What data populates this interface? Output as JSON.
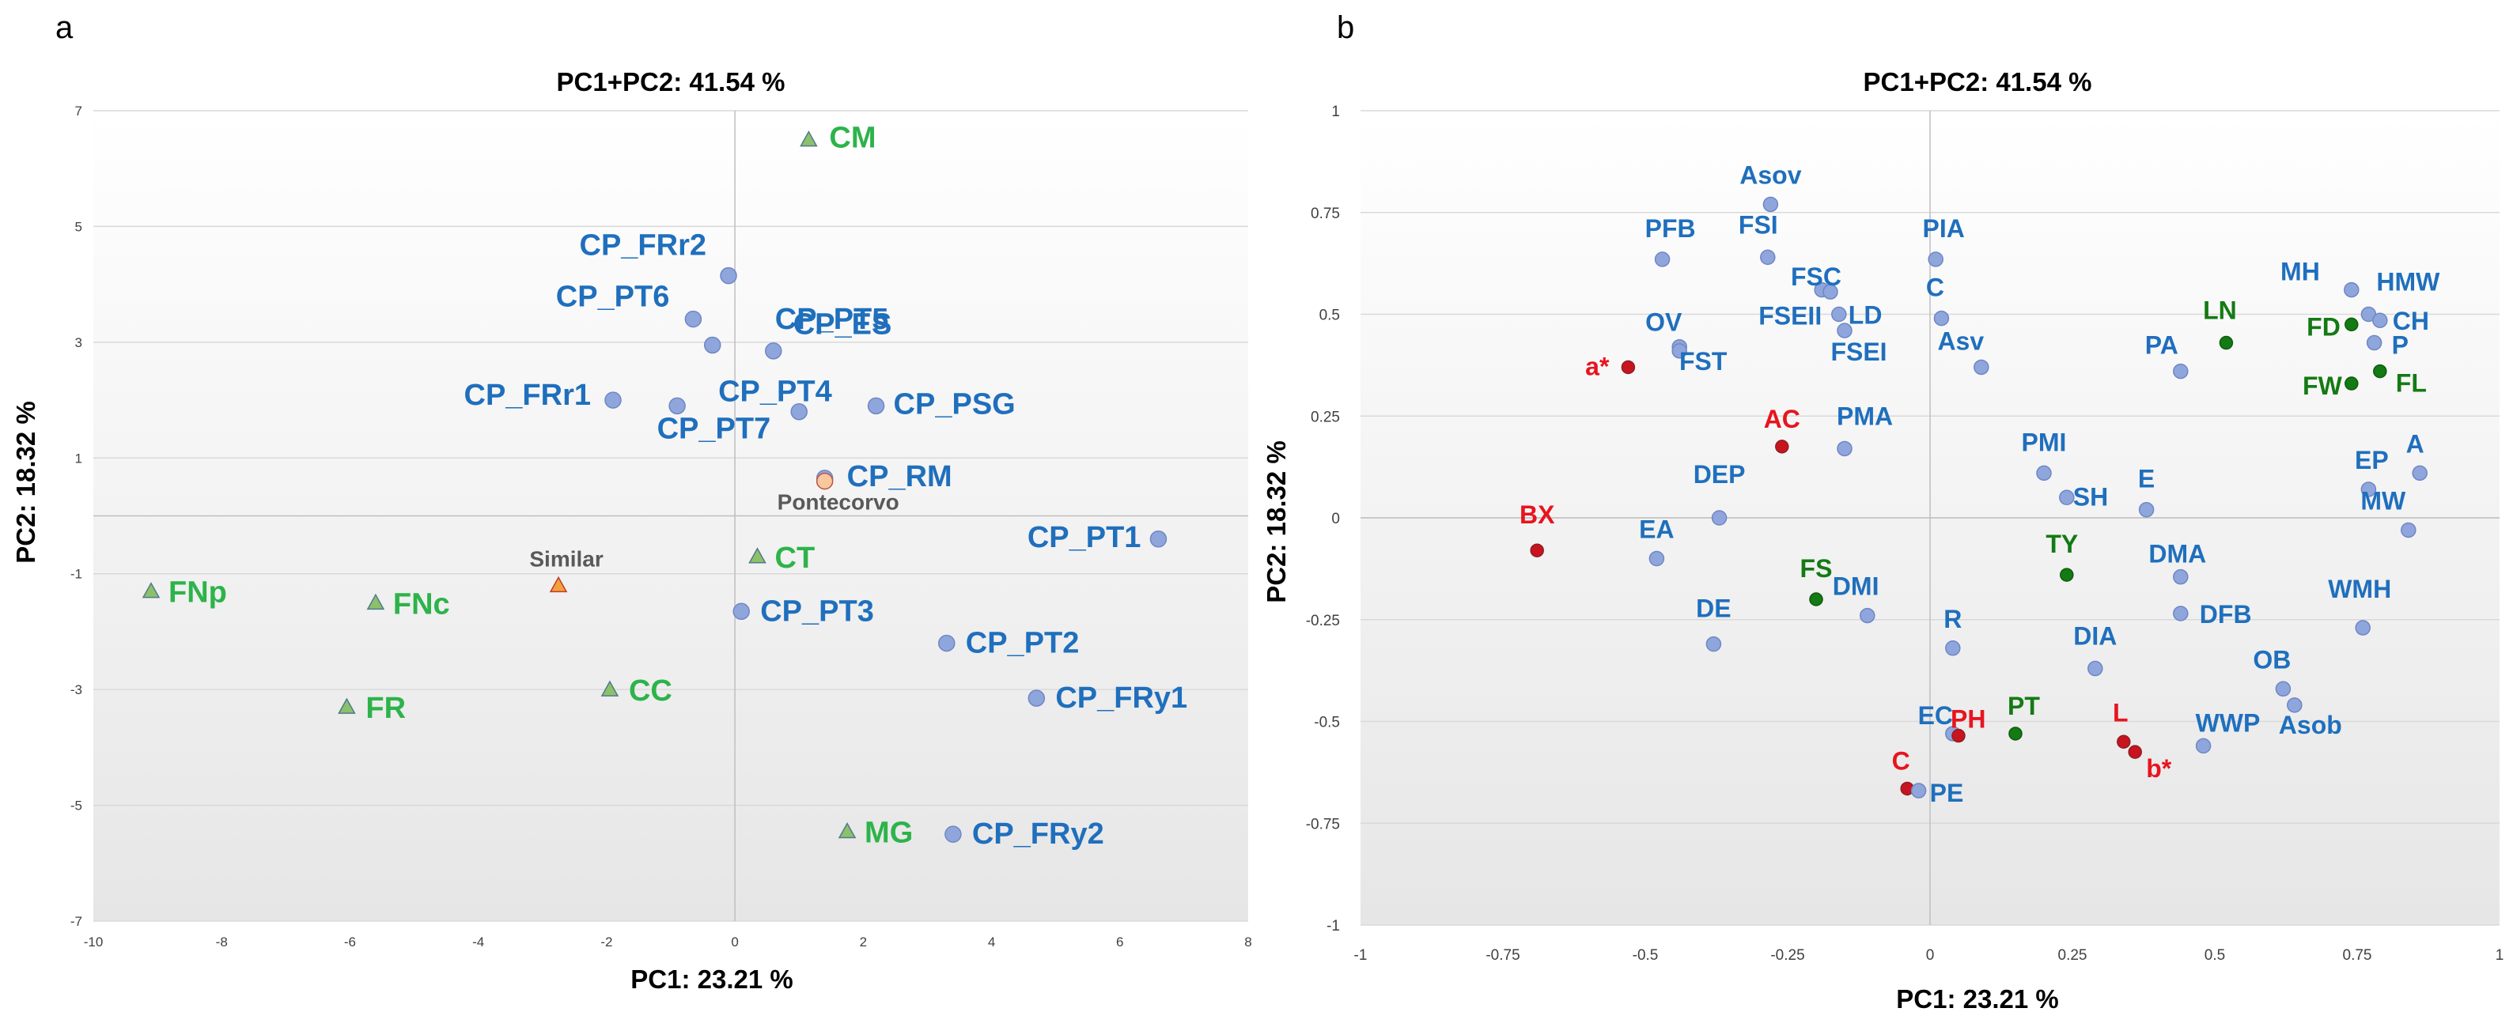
{
  "panels": {
    "a": "a",
    "b": "b"
  },
  "chart_data": [
    {
      "id": "a",
      "type": "scatter",
      "title": "PC1+PC2: 41.54 %",
      "xlabel": "PC1: 23.21 %",
      "ylabel": "PC2: 18.32 %",
      "xlim": [
        -10,
        8
      ],
      "ylim": [
        -7,
        7
      ],
      "xticks": [
        -10,
        -8,
        -6,
        -4,
        -2,
        0,
        2,
        4,
        6,
        8
      ],
      "yticks": [
        -7,
        -5,
        -3,
        -1,
        1,
        3,
        5,
        7
      ],
      "colors": {
        "blue": "#1f6fbd",
        "green": "#2db34a",
        "gray": "#595959",
        "marker_blue": "#8fa6dc",
        "marker_green": "#8cc06a",
        "marker_orange": "#f7c89b",
        "marker_red": "#f3a23a"
      },
      "points": [
        {
          "label": "CM",
          "x": 1.15,
          "y": 6.5,
          "group": "green",
          "marker": "triangle"
        },
        {
          "label": "CP_FRr2",
          "x": -0.1,
          "y": 4.15,
          "group": "blue",
          "marker": "circle"
        },
        {
          "label": "CP_PT6",
          "x": -0.65,
          "y": 3.4,
          "group": "blue",
          "marker": "circle"
        },
        {
          "label": "CP_PT5",
          "x": 0.6,
          "y": 2.85,
          "group": "blue",
          "marker": "circle"
        },
        {
          "label": "CP_ES",
          "x": -0.35,
          "y": 2.95,
          "group": "blue",
          "marker": "circle"
        },
        {
          "label": "CP_FRr1",
          "x": -1.9,
          "y": 2.0,
          "group": "blue",
          "marker": "circle"
        },
        {
          "label": "CP_PT4",
          "x": -0.9,
          "y": 1.9,
          "group": "blue",
          "marker": "circle"
        },
        {
          "label": "CP_PSG",
          "x": 2.2,
          "y": 1.9,
          "group": "blue",
          "marker": "circle"
        },
        {
          "label": "CP_PT7",
          "x": 1.0,
          "y": 1.8,
          "group": "blue",
          "marker": "circle"
        },
        {
          "label": "CP_RM",
          "x": 1.4,
          "y": 0.65,
          "group": "blue",
          "marker": "circle"
        },
        {
          "label": "Pontecorvo",
          "x": 1.4,
          "y": 0.6,
          "group": "gray",
          "marker": "circle-orange"
        },
        {
          "label": "CP_PT1",
          "x": 6.6,
          "y": -0.4,
          "group": "blue",
          "marker": "circle"
        },
        {
          "label": "CT",
          "x": 0.35,
          "y": -0.7,
          "group": "green",
          "marker": "triangle"
        },
        {
          "label": "Similar",
          "x": -2.75,
          "y": -1.2,
          "group": "gray",
          "marker": "triangle-red"
        },
        {
          "label": "FNp",
          "x": -9.1,
          "y": -1.3,
          "group": "green",
          "marker": "triangle"
        },
        {
          "label": "FNc",
          "x": -5.6,
          "y": -1.5,
          "group": "green",
          "marker": "triangle"
        },
        {
          "label": "CP_PT3",
          "x": 0.1,
          "y": -1.65,
          "group": "blue",
          "marker": "circle"
        },
        {
          "label": "CP_PT2",
          "x": 3.3,
          "y": -2.2,
          "group": "blue",
          "marker": "circle"
        },
        {
          "label": "CC",
          "x": -1.95,
          "y": -3.0,
          "group": "green",
          "marker": "triangle"
        },
        {
          "label": "CP_FRy1",
          "x": 4.7,
          "y": -3.15,
          "group": "blue",
          "marker": "circle"
        },
        {
          "label": "FR",
          "x": -6.05,
          "y": -3.3,
          "group": "green",
          "marker": "triangle"
        },
        {
          "label": "MG",
          "x": 1.75,
          "y": -5.45,
          "group": "green",
          "marker": "triangle"
        },
        {
          "label": "CP_FRy2",
          "x": 3.4,
          "y": -5.5,
          "group": "blue",
          "marker": "circle"
        }
      ]
    },
    {
      "id": "b",
      "type": "scatter",
      "title": "PC1+PC2: 41.54 %",
      "xlabel": "PC1: 23.21 %",
      "ylabel": "PC2: 18.32 %",
      "xlim": [
        -1,
        1
      ],
      "ylim": [
        -1,
        1
      ],
      "xticks": [
        -1,
        -0.75,
        -0.5,
        -0.25,
        0,
        0.25,
        0.5,
        0.75,
        1
      ],
      "yticks": [
        -1,
        -0.75,
        -0.5,
        -0.25,
        0,
        0.25,
        0.5,
        0.75,
        1
      ],
      "colors": {
        "blue": "#1f6fbd",
        "green": "#147a14",
        "red": "#e8141e",
        "marker_blue": "#8fa6dc",
        "marker_green": "#147a14",
        "marker_red": "#c8141e"
      },
      "points": [
        {
          "label": "Asov",
          "x": -0.28,
          "y": 0.77,
          "group": "blue"
        },
        {
          "label": "PFB",
          "x": -0.47,
          "y": 0.635,
          "group": "blue"
        },
        {
          "label": "FSI",
          "x": -0.285,
          "y": 0.64,
          "group": "blue"
        },
        {
          "label": "FSEII",
          "x": -0.19,
          "y": 0.56,
          "group": "blue"
        },
        {
          "label": "FSC",
          "x": -0.175,
          "y": 0.555,
          "group": "blue"
        },
        {
          "label": "LD",
          "x": -0.16,
          "y": 0.5,
          "group": "blue"
        },
        {
          "label": "PIA",
          "x": 0.01,
          "y": 0.635,
          "group": "blue"
        },
        {
          "label": "C",
          "x": 0.02,
          "y": 0.49,
          "group": "blue"
        },
        {
          "label": "Asv",
          "x": 0.09,
          "y": 0.37,
          "group": "blue"
        },
        {
          "label": "OV",
          "x": -0.44,
          "y": 0.42,
          "group": "blue"
        },
        {
          "label": "FST",
          "x": -0.44,
          "y": 0.41,
          "group": "blue"
        },
        {
          "label": "FSEI",
          "x": -0.15,
          "y": 0.46,
          "group": "blue"
        },
        {
          "label": "a*",
          "x": -0.53,
          "y": 0.37,
          "group": "red"
        },
        {
          "label": "PMA",
          "x": -0.15,
          "y": 0.17,
          "group": "blue"
        },
        {
          "label": "AC",
          "x": -0.26,
          "y": 0.175,
          "group": "red"
        },
        {
          "label": "BX",
          "x": -0.69,
          "y": -0.08,
          "group": "red"
        },
        {
          "label": "DEP",
          "x": -0.37,
          "y": 0.0,
          "group": "blue"
        },
        {
          "label": "EA",
          "x": -0.48,
          "y": -0.1,
          "group": "blue"
        },
        {
          "label": "FS",
          "x": -0.2,
          "y": -0.2,
          "group": "green"
        },
        {
          "label": "DMI",
          "x": -0.11,
          "y": -0.24,
          "group": "blue"
        },
        {
          "label": "DE",
          "x": -0.38,
          "y": -0.31,
          "group": "blue"
        },
        {
          "label": "PMI",
          "x": 0.2,
          "y": 0.11,
          "group": "blue"
        },
        {
          "label": "SH",
          "x": 0.24,
          "y": 0.05,
          "group": "blue"
        },
        {
          "label": "E",
          "x": 0.38,
          "y": 0.02,
          "group": "blue"
        },
        {
          "label": "TY",
          "x": 0.24,
          "y": -0.14,
          "group": "green"
        },
        {
          "label": "DMA",
          "x": 0.44,
          "y": -0.145,
          "group": "blue"
        },
        {
          "label": "DFB",
          "x": 0.44,
          "y": -0.235,
          "group": "blue"
        },
        {
          "label": "R",
          "x": 0.04,
          "y": -0.32,
          "group": "blue"
        },
        {
          "label": "DIA",
          "x": 0.29,
          "y": -0.37,
          "group": "blue"
        },
        {
          "label": "EC",
          "x": 0.04,
          "y": -0.53,
          "group": "blue"
        },
        {
          "label": "PH",
          "x": 0.05,
          "y": -0.535,
          "group": "red"
        },
        {
          "label": "PT",
          "x": 0.15,
          "y": -0.53,
          "group": "green"
        },
        {
          "label": "L",
          "x": 0.34,
          "y": -0.55,
          "group": "red"
        },
        {
          "label": "b*",
          "x": 0.36,
          "y": -0.575,
          "group": "red"
        },
        {
          "label": "WWP",
          "x": 0.48,
          "y": -0.56,
          "group": "blue"
        },
        {
          "label": "C",
          "x": -0.04,
          "y": -0.665,
          "group": "red"
        },
        {
          "label": "PE",
          "x": -0.02,
          "y": -0.67,
          "group": "blue"
        },
        {
          "label": "PA",
          "x": 0.44,
          "y": 0.36,
          "group": "blue"
        },
        {
          "label": "LN",
          "x": 0.52,
          "y": 0.43,
          "group": "green"
        },
        {
          "label": "MH",
          "x": 0.74,
          "y": 0.56,
          "group": "blue"
        },
        {
          "label": "HMW",
          "x": 0.77,
          "y": 0.5,
          "group": "blue"
        },
        {
          "label": "CH",
          "x": 0.79,
          "y": 0.485,
          "group": "blue"
        },
        {
          "label": "FD",
          "x": 0.74,
          "y": 0.475,
          "group": "green"
        },
        {
          "label": "P",
          "x": 0.78,
          "y": 0.43,
          "group": "blue"
        },
        {
          "label": "FL",
          "x": 0.79,
          "y": 0.36,
          "group": "green"
        },
        {
          "label": "FW",
          "x": 0.74,
          "y": 0.33,
          "group": "green"
        },
        {
          "label": "EP",
          "x": 0.77,
          "y": 0.07,
          "group": "blue"
        },
        {
          "label": "A",
          "x": 0.86,
          "y": 0.11,
          "group": "blue"
        },
        {
          "label": "MW",
          "x": 0.84,
          "y": -0.03,
          "group": "blue"
        },
        {
          "label": "WMH",
          "x": 0.76,
          "y": -0.27,
          "group": "blue"
        },
        {
          "label": "OB",
          "x": 0.62,
          "y": -0.42,
          "group": "blue"
        },
        {
          "label": "Asob",
          "x": 0.64,
          "y": -0.46,
          "group": "blue"
        }
      ]
    }
  ]
}
